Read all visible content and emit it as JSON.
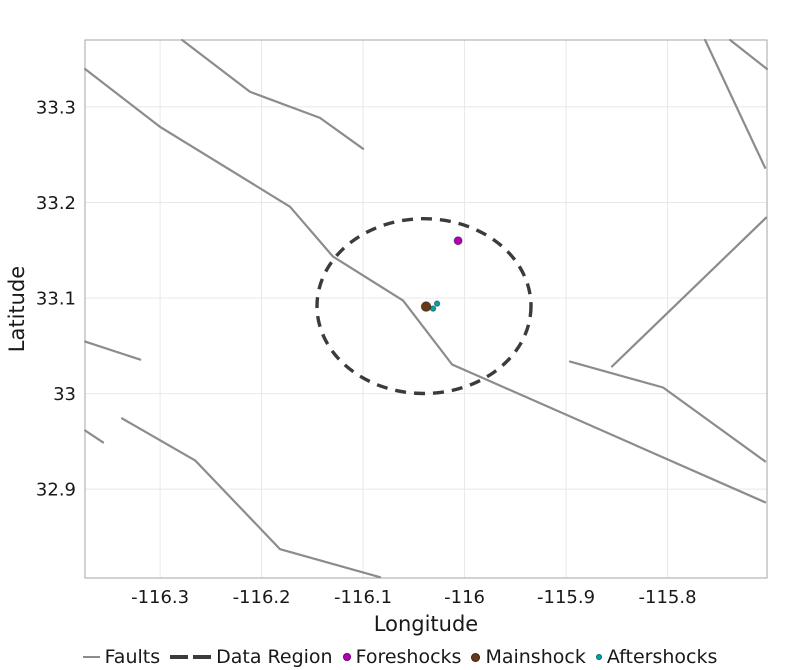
{
  "figure": {
    "background": "#ffffff"
  },
  "chart_data": {
    "type": "scatter",
    "title": "",
    "xlabel": "Longitude",
    "ylabel": "Latitude",
    "xlim": [
      -116.374,
      -115.702
    ],
    "ylim": [
      32.807,
      33.37
    ],
    "grid": true,
    "legend_position": "bottom",
    "xticks": {
      "values": [
        -116.3,
        -116.2,
        -116.1,
        -116.0,
        -115.9,
        -115.8
      ],
      "labels": [
        "-116.3",
        "-116.2",
        "-116.1",
        "-116",
        "-115.9",
        "-115.8"
      ]
    },
    "yticks": {
      "values": [
        33.3,
        33.2,
        33.1,
        33.0,
        32.9
      ],
      "labels": [
        "33.3",
        "33.2",
        "33.1",
        "33",
        "32.9"
      ]
    },
    "colors": {
      "grid": "#e8e8e8",
      "frame": "#a6a6a6",
      "text": "#191919"
    },
    "faults": {
      "name": "Faults",
      "color": "#8c8c8c",
      "lines": [
        [
          [
            -116.2783,
            33.37
          ],
          [
            -116.2113,
            33.3157
          ],
          [
            -116.1424,
            33.2885
          ],
          [
            -116.1,
            33.2561
          ]
        ],
        [
          [
            -116.3739,
            33.3397
          ],
          [
            -116.3,
            33.2791
          ],
          [
            -116.1719,
            33.1955
          ],
          [
            -116.1296,
            33.1433
          ],
          [
            -116.0606,
            33.0973
          ],
          [
            -116.0123,
            33.0304
          ],
          [
            -115.7039,
            32.8862
          ]
        ],
        [
          [
            -116.3739,
            33.0544
          ],
          [
            -116.3197,
            33.0356
          ]
        ],
        [
          [
            -116.3374,
            32.974
          ],
          [
            -116.2655,
            32.9301
          ],
          [
            -116.1818,
            32.8371
          ],
          [
            -116.0833,
            32.8078
          ]
        ],
        [
          [
            -116.3739,
            32.9614
          ],
          [
            -116.3562,
            32.9489
          ]
        ],
        [
          [
            -115.763,
            33.37
          ],
          [
            -115.7039,
            33.2363
          ]
        ],
        [
          [
            -115.7384,
            33.37
          ],
          [
            -115.702,
            33.3397
          ]
        ],
        [
          [
            -115.7029,
            33.184
          ],
          [
            -115.8547,
            33.0283
          ]
        ],
        [
          [
            -115.8961,
            33.0335
          ],
          [
            -115.8044,
            33.0064
          ],
          [
            -115.7039,
            32.929
          ]
        ]
      ]
    },
    "data_region": {
      "name": "Data Region",
      "color": "#3b3b3b",
      "center": [
        -116.04,
        33.0915
      ],
      "rx_deg": 0.1054,
      "ry_deg": 0.0915
    },
    "events": [
      {
        "name": "Foreshocks",
        "color": "#b400b4",
        "marker_radius": 4.0,
        "points": [
          [
            -116.0064,
            33.16
          ]
        ]
      },
      {
        "name": "Mainshock",
        "color": "#65391a",
        "marker_radius": 4.8,
        "points": [
          [
            -116.0379,
            33.091
          ]
        ]
      },
      {
        "name": "Aftershocks",
        "color": "#00a3ab",
        "marker_radius": 2.7,
        "points": [
          [
            -116.031,
            33.0889
          ],
          [
            -116.0271,
            33.0942
          ]
        ]
      }
    ]
  },
  "legend": {
    "items": [
      {
        "label": "Faults",
        "marker": "line",
        "color": "#8c8c8c"
      },
      {
        "label": "Data Region",
        "marker": "dashes",
        "color": "#3b3b3b"
      },
      {
        "label": "Foreshocks",
        "marker": "dot",
        "color": "#b400b4"
      },
      {
        "label": "Mainshock",
        "marker": "dot",
        "color": "#65391a"
      },
      {
        "label": "Aftershocks",
        "marker": "dot",
        "color": "#00a3ab"
      }
    ]
  }
}
